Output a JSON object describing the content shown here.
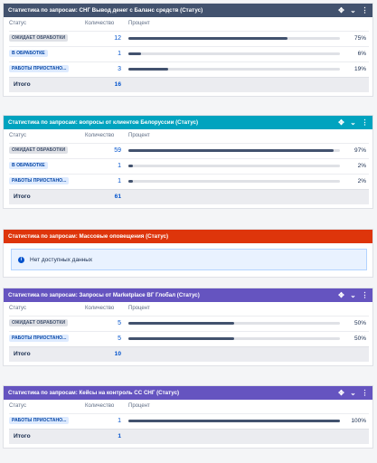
{
  "headers": {
    "status": "Статус",
    "count": "Количество",
    "percent": "Процент"
  },
  "total_label": "Итого",
  "gadgets": [
    {
      "title": "Статистика по запросам: СНГ Вывод денег с Баланс средств (Статус)",
      "color": "#42526e",
      "rows": [
        {
          "status": "ОЖИДАЕТ ОБРАБОТКИ",
          "lozenge": "gray",
          "count": "12",
          "pct_label": "75%",
          "pct": 75
        },
        {
          "status": "В ОБРАБОТКЕ",
          "lozenge": "blue",
          "count": "1",
          "pct_label": "6%",
          "pct": 6
        },
        {
          "status": "РАБОТЫ ПРИОСТАНО...",
          "lozenge": "blue",
          "count": "3",
          "pct_label": "19%",
          "pct": 19
        }
      ],
      "total": "16"
    },
    {
      "title": "Статистика по запросам: вопросы от клиентов Белоруссии (Статус)",
      "color": "#00a3bf",
      "rows": [
        {
          "status": "ОЖИДАЕТ ОБРАБОТКИ",
          "lozenge": "gray",
          "count": "59",
          "pct_label": "97%",
          "pct": 97
        },
        {
          "status": "В ОБРАБОТКЕ",
          "lozenge": "blue",
          "count": "1",
          "pct_label": "2%",
          "pct": 2
        },
        {
          "status": "РАБОТЫ ПРИОСТАНО...",
          "lozenge": "blue",
          "count": "1",
          "pct_label": "2%",
          "pct": 2
        }
      ],
      "total": "61"
    },
    {
      "title": "Статистика по запросам: Массовые оповещения (Статус)",
      "color": "#de350b",
      "info": "Нет доступных данных"
    },
    {
      "title": "Статистика по запросам: Запросы от Marketplace ВГ Глобал (Статус)",
      "color": "#6554c0",
      "rows": [
        {
          "status": "ОЖИДАЕТ ОБРАБОТКИ",
          "lozenge": "gray",
          "count": "5",
          "pct_label": "50%",
          "pct": 50
        },
        {
          "status": "РАБОТЫ ПРИОСТАНО...",
          "lozenge": "blue",
          "count": "5",
          "pct_label": "50%",
          "pct": 50
        }
      ],
      "total": "10"
    },
    {
      "title": "Статистика по запросам: Кейсы на контроль СС СНГ (Статус)",
      "color": "#6554c0",
      "rows": [
        {
          "status": "РАБОТЫ ПРИОСТАНО...",
          "lozenge": "blue",
          "count": "1",
          "pct_label": "100%",
          "pct": 100
        }
      ],
      "total": "1"
    }
  ],
  "icons": [
    "move-icon",
    "minimize-icon",
    "more-icon"
  ]
}
